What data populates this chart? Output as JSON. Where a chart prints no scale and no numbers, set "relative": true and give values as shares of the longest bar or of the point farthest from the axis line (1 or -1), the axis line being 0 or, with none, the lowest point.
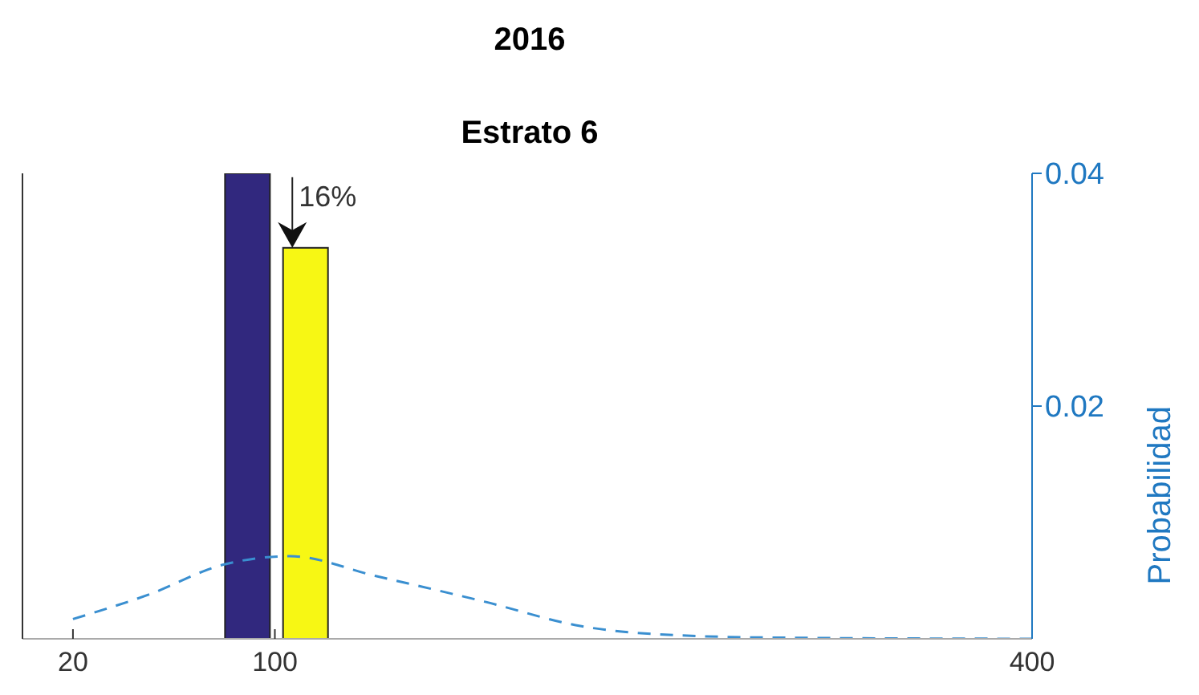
{
  "chart_data": {
    "type": "bar",
    "title": "2016",
    "subtitle": "Estrato 6",
    "y2label": "Probabilidad",
    "relative": true,
    "x": [
      89,
      112
    ],
    "values": [
      1,
      0.84
    ],
    "colors": [
      "#31287e",
      "#f7f714"
    ],
    "series": [
      {
        "type": "line",
        "axis": "y2",
        "color": "#3a8fd0",
        "line_style": "dashed",
        "marker": "none",
        "x": [
          20,
          50,
          80,
          106,
          140,
          183,
          221,
          260,
          300,
          400
        ],
        "values": [
          0.0017,
          0.0038,
          0.0064,
          0.0071,
          0.0054,
          0.0032,
          0.0011,
          0.0003,
          0.0001,
          0
        ]
      }
    ],
    "annotations": [
      {
        "text": "16%",
        "x": 112,
        "y": 0.84
      }
    ],
    "xlim": [
      0,
      400
    ],
    "xticks": [
      20,
      100,
      400
    ],
    "y2lim": [
      0,
      0.04
    ],
    "y2ticks": [
      0.02,
      0.04
    ],
    "grid": false,
    "legend": false
  }
}
